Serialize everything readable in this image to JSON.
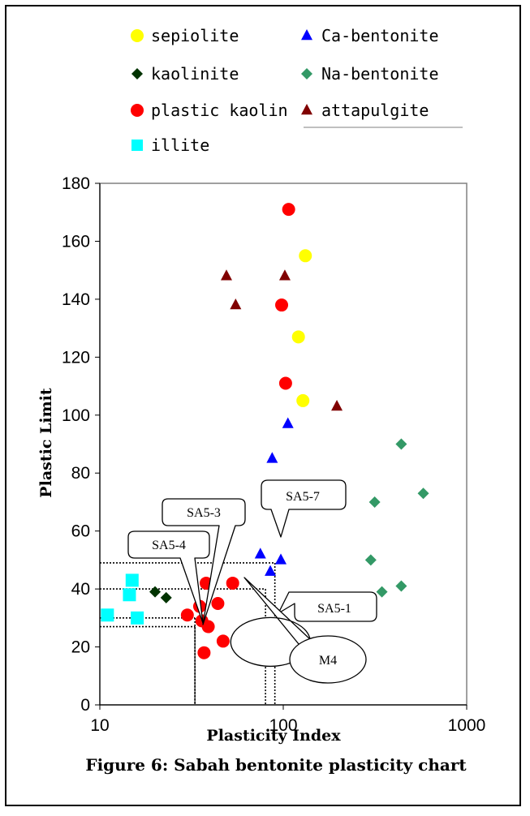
{
  "chart_data": {
    "type": "scatter",
    "title": "",
    "xlabel": "Plasticity Index",
    "ylabel": "Plastic Limit",
    "x_scale": "log",
    "xlim": [
      10,
      1000
    ],
    "ylim": [
      0,
      180
    ],
    "x_ticks": [
      "10",
      "100",
      "1000"
    ],
    "y_ticks": [
      "0",
      "20",
      "40",
      "60",
      "80",
      "100",
      "120",
      "140",
      "160",
      "180"
    ],
    "grid": false,
    "legend_position": "top",
    "caption": "Figure 6: Sabah bentonite plasticity chart",
    "series": [
      {
        "name": "sepiolite",
        "marker": "circle",
        "color": "#FFFF00",
        "points": [
          [
            132,
            155
          ],
          [
            121,
            127
          ],
          [
            128,
            105
          ]
        ]
      },
      {
        "name": "Ca-bentonite",
        "marker": "triangle",
        "color": "#0000FF",
        "points": [
          [
            106,
            97
          ],
          [
            87,
            85
          ],
          [
            75,
            52
          ],
          [
            97,
            50
          ],
          [
            85,
            46
          ]
        ]
      },
      {
        "name": "kaolinite",
        "marker": "diamond",
        "color": "#003300",
        "points": [
          [
            20,
            39
          ],
          [
            23,
            37
          ]
        ]
      },
      {
        "name": "Na-bentonite",
        "marker": "diamond",
        "color": "#339966",
        "points": [
          [
            440,
            90
          ],
          [
            580,
            73
          ],
          [
            315,
            70
          ],
          [
            300,
            50
          ],
          [
            440,
            41
          ],
          [
            345,
            39
          ]
        ]
      },
      {
        "name": "plastic kaolin",
        "marker": "circle",
        "color": "#FF0000",
        "points": [
          [
            107,
            171
          ],
          [
            98,
            138
          ],
          [
            103,
            111
          ],
          [
            38,
            42
          ],
          [
            53,
            42
          ],
          [
            35,
            34
          ],
          [
            44,
            35
          ],
          [
            30,
            31
          ],
          [
            36,
            29
          ],
          [
            39,
            27
          ],
          [
            47,
            22
          ],
          [
            37,
            18
          ]
        ]
      },
      {
        "name": "attapulgite",
        "marker": "triangle",
        "color": "#800000",
        "points": [
          [
            49,
            148
          ],
          [
            102,
            148
          ],
          [
            55,
            138
          ],
          [
            196,
            103
          ]
        ]
      },
      {
        "name": "illite",
        "marker": "square",
        "color": "#00FFFF",
        "points": [
          [
            15,
            43
          ],
          [
            14.5,
            38
          ],
          [
            11,
            31
          ],
          [
            16,
            30
          ]
        ]
      }
    ],
    "reference_lines": [
      {
        "label": "SA5-3",
        "x": 33,
        "y": 30
      },
      {
        "label": "SA5-4",
        "x": 33,
        "y": 27
      },
      {
        "label": "SA5-7",
        "x": 90,
        "y": 49
      },
      {
        "label": "SA5-1",
        "x": 80,
        "y": 40
      }
    ],
    "annotations": [
      {
        "id": "sa5-3",
        "text": "SA5-3"
      },
      {
        "id": "sa5-4",
        "text": "SA5-4"
      },
      {
        "id": "sa5-7",
        "text": "SA5-7"
      },
      {
        "id": "sa5-1",
        "text": "SA5-1"
      },
      {
        "id": "m4",
        "text": "M4"
      }
    ]
  }
}
